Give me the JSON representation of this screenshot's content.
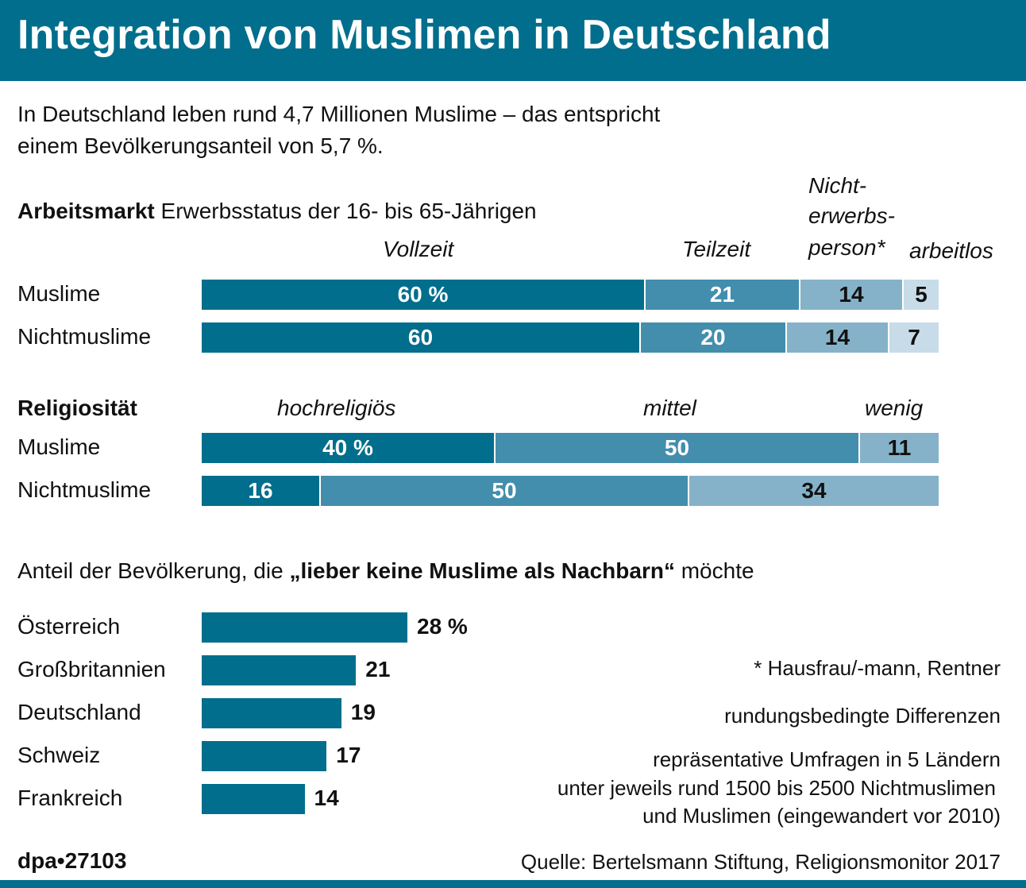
{
  "title": "Integration von Muslimen in Deutschland",
  "intro": {
    "line1": "In Deutschland leben rund 4,7 Millionen Muslime – das entspricht",
    "line2": "einem Bevölkerungsanteil von 5,7 %."
  },
  "arbeitsmarkt": {
    "title_bold": "Arbeitsmarkt",
    "title_rest": " Erwerbsstatus der 16- bis 65-Jährigen",
    "columns": [
      "Vollzeit",
      "Teilzeit",
      "Nicht-",
      "erwerbs-",
      "person*",
      "arbeitlos"
    ]
  },
  "religiositaet": {
    "title": "Religiosität",
    "columns": [
      "hochreligiös",
      "mittel",
      "wenig"
    ]
  },
  "nachbarn": {
    "prefix": "Anteil der Bevölkerung, die ",
    "bold": "„lieber keine Muslime als Nachbarn“",
    "suffix": " möchte"
  },
  "chart_data": [
    {
      "type": "bar",
      "stacked": true,
      "orientation": "horizontal",
      "categories": [
        "Muslime",
        "Nichtmuslime"
      ],
      "series": [
        {
          "name": "Vollzeit",
          "values": [
            60,
            60
          ],
          "labels": [
            "60 %",
            "60"
          ],
          "color": "#006e8c"
        },
        {
          "name": "Teilzeit",
          "values": [
            21,
            20
          ],
          "labels": [
            "21",
            "20"
          ],
          "color": "#438ead"
        },
        {
          "name": "Nichterwerbsperson*",
          "values": [
            14,
            14
          ],
          "labels": [
            "14",
            "14"
          ],
          "color": "#85b2c9"
        },
        {
          "name": "arbeitlos",
          "values": [
            5,
            7
          ],
          "labels": [
            "5",
            "7"
          ],
          "color": "#c7dce8"
        }
      ]
    },
    {
      "type": "bar",
      "stacked": true,
      "orientation": "horizontal",
      "categories": [
        "Muslime",
        "Nichtmuslime"
      ],
      "series": [
        {
          "name": "hochreligiös",
          "values": [
            40,
            16
          ],
          "labels": [
            "40 %",
            "16"
          ],
          "color": "#006e8c"
        },
        {
          "name": "mittel",
          "values": [
            50,
            50
          ],
          "labels": [
            "50",
            "50"
          ],
          "color": "#438ead"
        },
        {
          "name": "wenig",
          "values": [
            11,
            34
          ],
          "labels": [
            "11",
            "34"
          ],
          "color": "#85b2c9"
        }
      ]
    },
    {
      "type": "bar",
      "orientation": "horizontal",
      "categories": [
        "Österreich",
        "Großbritannien",
        "Deutschland",
        "Schweiz",
        "Frankreich"
      ],
      "values": [
        28,
        21,
        19,
        17,
        14
      ],
      "labels": [
        "28 %",
        "21",
        "19",
        "17",
        "14"
      ],
      "color": "#006e8c"
    }
  ],
  "notes": {
    "footnote": "* Hausfrau/-mann, Rentner",
    "rounding": "rundungsbedingte Differenzen",
    "survey1": "repräsentative Umfragen in 5 Ländern",
    "survey2": "unter jeweils rund 1500 bis 2500 Nichtmuslimen",
    "survey3": "und Muslimen (eingewandert vor 2010)"
  },
  "footer": {
    "credit": "dpa•27103",
    "source": "Quelle: Bertelsmann Stiftung, Religionsmonitor 2017"
  }
}
